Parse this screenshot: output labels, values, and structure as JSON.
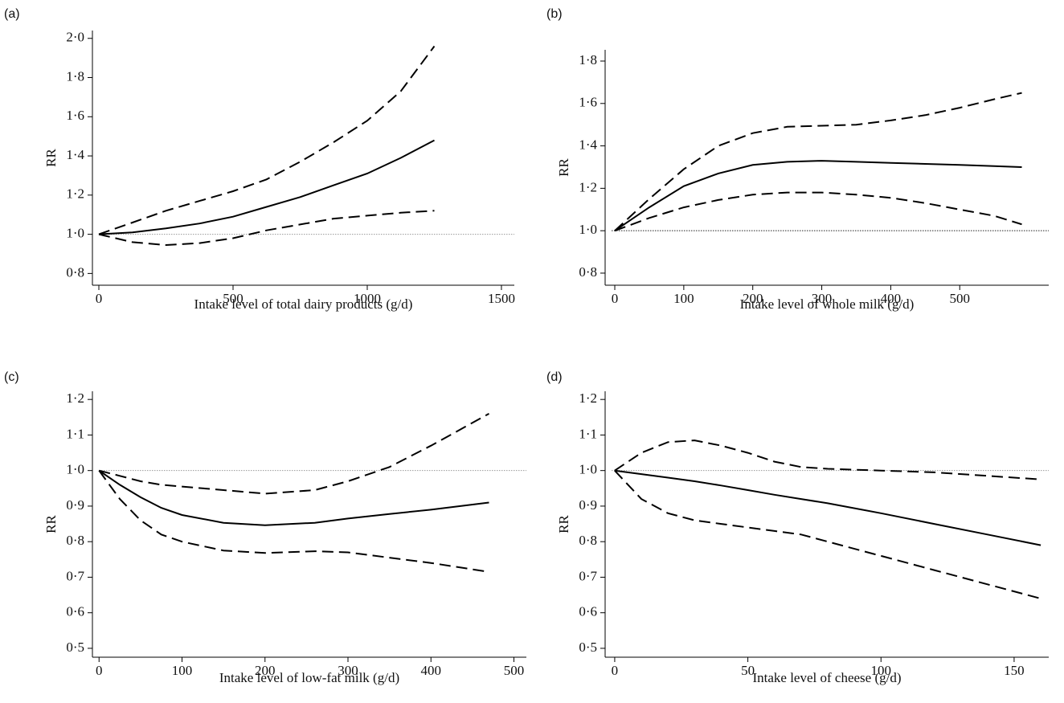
{
  "chart_data": [
    {
      "type": "line",
      "panel": "(a)",
      "xlabel": "Intake level of total dairy products (g/d)",
      "ylabel": "RR",
      "x": [
        0,
        125,
        250,
        375,
        500,
        625,
        750,
        875,
        1000,
        1125,
        1250
      ],
      "series": [
        {
          "color": "#000000",
          "dash": "solid",
          "values": [
            1.0,
            1.01,
            1.03,
            1.055,
            1.09,
            1.14,
            1.19,
            1.25,
            1.31,
            1.39,
            1.48
          ]
        },
        {
          "color": "#000000",
          "dash": "dashed",
          "values": [
            1.0,
            1.06,
            1.12,
            1.17,
            1.22,
            1.28,
            1.37,
            1.47,
            1.58,
            1.73,
            1.96
          ]
        },
        {
          "color": "#000000",
          "dash": "dashed",
          "values": [
            1.0,
            0.96,
            0.945,
            0.955,
            0.98,
            1.02,
            1.05,
            1.08,
            1.095,
            1.11,
            1.12
          ]
        }
      ],
      "reference_line": 1,
      "reference_color": "#999999",
      "xlim": [
        -24,
        1548
      ],
      "xticks": [
        0,
        500,
        1000,
        1500
      ],
      "ylim": [
        0.74,
        2.04
      ],
      "yticks": [
        {
          "value": 0.8,
          "label": "0·8"
        },
        {
          "value": 1,
          "label": "1·0"
        },
        {
          "value": 1.2,
          "label": "1·2"
        },
        {
          "value": 1.4,
          "label": "1·4"
        },
        {
          "value": 1.6,
          "label": "1·6"
        },
        {
          "value": 1.8,
          "label": "1·8"
        },
        {
          "value": 2,
          "label": "2·0"
        }
      ]
    },
    {
      "type": "line",
      "panel": "(b)",
      "xlabel": "Intake level of whole milk (g/d)",
      "ylabel": "RR",
      "x": [
        0,
        50,
        100,
        150,
        200,
        250,
        300,
        350,
        400,
        450,
        500,
        550,
        590
      ],
      "series": [
        {
          "color": "#000000",
          "dash": "solid",
          "values": [
            1.0,
            1.11,
            1.21,
            1.27,
            1.31,
            1.325,
            1.33,
            1.325,
            1.32,
            1.315,
            1.31,
            1.305,
            1.3
          ]
        },
        {
          "color": "#000000",
          "dash": "dashed",
          "values": [
            1.0,
            1.15,
            1.29,
            1.4,
            1.46,
            1.49,
            1.495,
            1.5,
            1.52,
            1.545,
            1.58,
            1.62,
            1.65
          ]
        },
        {
          "color": "#000000",
          "dash": "dashed",
          "values": [
            1.0,
            1.06,
            1.11,
            1.145,
            1.17,
            1.18,
            1.18,
            1.17,
            1.155,
            1.13,
            1.1,
            1.07,
            1.03
          ]
        }
      ],
      "reference_line": 1,
      "reference_color": "#222222",
      "xlim": [
        -14,
        629
      ],
      "xticks": [
        0,
        100,
        200,
        300,
        400,
        500
      ],
      "ylim": [
        0.743,
        1.853
      ],
      "yticks": [
        {
          "value": 0.8,
          "label": "0·8"
        },
        {
          "value": 1,
          "label": "1·0"
        },
        {
          "value": 1.2,
          "label": "1·2"
        },
        {
          "value": 1.4,
          "label": "1·4"
        },
        {
          "value": 1.6,
          "label": "1·6"
        },
        {
          "value": 1.8,
          "label": "1·8"
        }
      ]
    },
    {
      "type": "line",
      "panel": "(c)",
      "xlabel": "Intake level of low-fat milk (g/d)",
      "ylabel": "RR",
      "x": [
        0,
        25,
        50,
        75,
        100,
        150,
        200,
        260,
        300,
        350,
        400,
        470
      ],
      "series": [
        {
          "color": "#000000",
          "dash": "solid",
          "values": [
            1.0,
            0.96,
            0.925,
            0.895,
            0.875,
            0.853,
            0.846,
            0.853,
            0.865,
            0.878,
            0.89,
            0.91
          ]
        },
        {
          "color": "#000000",
          "dash": "dashed",
          "values": [
            1.0,
            0.985,
            0.97,
            0.96,
            0.955,
            0.945,
            0.935,
            0.945,
            0.97,
            1.01,
            1.07,
            1.16
          ]
        },
        {
          "color": "#000000",
          "dash": "dashed",
          "values": [
            1.0,
            0.92,
            0.86,
            0.82,
            0.8,
            0.775,
            0.768,
            0.773,
            0.77,
            0.755,
            0.74,
            0.715
          ]
        }
      ],
      "reference_line": 1,
      "reference_color": "#999999",
      "xlim": [
        -8,
        515
      ],
      "xticks": [
        0,
        100,
        200,
        300,
        400,
        500
      ],
      "ylim": [
        0.475,
        1.223
      ],
      "yticks": [
        {
          "value": 0.5,
          "label": "0·5"
        },
        {
          "value": 0.6,
          "label": "0·6"
        },
        {
          "value": 0.7,
          "label": "0·7"
        },
        {
          "value": 0.8,
          "label": "0·8"
        },
        {
          "value": 0.9,
          "label": "0·9"
        },
        {
          "value": 1,
          "label": "1·0"
        },
        {
          "value": 1.1,
          "label": "1·1"
        },
        {
          "value": 1.2,
          "label": "1·2"
        }
      ]
    },
    {
      "type": "line",
      "panel": "(d)",
      "xlabel": "Intake level of cheese (g/d)",
      "ylabel": "RR",
      "x": [
        0,
        10,
        20,
        30,
        40,
        50,
        60,
        70,
        80,
        100,
        120,
        140,
        160
      ],
      "series": [
        {
          "color": "#000000",
          "dash": "solid",
          "values": [
            1.0,
            0.99,
            0.98,
            0.97,
            0.958,
            0.945,
            0.932,
            0.92,
            0.908,
            0.88,
            0.85,
            0.82,
            0.79
          ]
        },
        {
          "color": "#000000",
          "dash": "dashed",
          "values": [
            1.0,
            1.05,
            1.08,
            1.085,
            1.07,
            1.05,
            1.025,
            1.01,
            1.005,
            1.0,
            0.995,
            0.985,
            0.975
          ]
        },
        {
          "color": "#000000",
          "dash": "dashed",
          "values": [
            1.0,
            0.92,
            0.88,
            0.86,
            0.85,
            0.84,
            0.83,
            0.82,
            0.8,
            0.76,
            0.72,
            0.68,
            0.64
          ]
        }
      ],
      "reference_line": 1,
      "reference_color": "#999999",
      "xlim": [
        -3.6,
        163
      ],
      "xticks": [
        0,
        50,
        100,
        150
      ],
      "ylim": [
        0.475,
        1.223
      ],
      "yticks": [
        {
          "value": 0.5,
          "label": "0·5"
        },
        {
          "value": 0.6,
          "label": "0·6"
        },
        {
          "value": 0.7,
          "label": "0·7"
        },
        {
          "value": 0.8,
          "label": "0·8"
        },
        {
          "value": 0.9,
          "label": "0·9"
        },
        {
          "value": 1,
          "label": "1·0"
        },
        {
          "value": 1.1,
          "label": "1·1"
        },
        {
          "value": 1.2,
          "label": "1·2"
        }
      ]
    }
  ]
}
